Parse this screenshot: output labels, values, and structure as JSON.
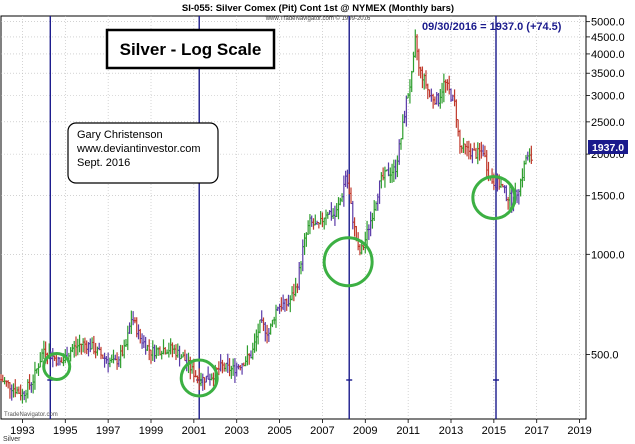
{
  "header": {
    "title": "SI-055:  Silver Comex (Pit) Cont 1st @ NYMEX  (Monthly bars)",
    "copyright": "www.TradeNavigator.com © 1999-2016",
    "readout": "09/30/2016 = 1937.0 (+74.5)",
    "last_price_tag": "1937.0"
  },
  "title_box": {
    "text": "Silver - Log Scale"
  },
  "author_box": {
    "lines": [
      "Gary Christenson",
      "www.deviantinvestor.com",
      "Sept. 2016"
    ]
  },
  "footer": {
    "watermark": "TradeNavigator.com",
    "symbol": "Silver"
  },
  "colors": {
    "up": "#2e9e2e",
    "down": "#c0392b",
    "other": "#5a3aa8",
    "vline": "#1a1a8c",
    "circle": "#3cb043",
    "readout": "#1a1a8c"
  },
  "chart_data": {
    "type": "ohlc",
    "title": "Silver - Log Scale",
    "scale": "log",
    "ylim": [
      320,
      5200
    ],
    "xlim": [
      1992.0,
      2019.3
    ],
    "x_ticks": [
      "1993",
      "1995",
      "1997",
      "1999",
      "2001",
      "2003",
      "2005",
      "2007",
      "2009",
      "2011",
      "2013",
      "2015",
      "2017",
      "2019"
    ],
    "y_ticks": [
      "5000.0",
      "4500.0",
      "4000.0",
      "3500.0",
      "3000.0",
      "2500.0",
      "2000.0",
      "1500.0",
      "1000.0",
      "500.0"
    ],
    "vertical_lines": [
      1994.3,
      2001.25,
      2008.25,
      2015.1
    ],
    "circles": [
      {
        "x": 1994.6,
        "y": 460
      },
      {
        "x": 2001.25,
        "y": 425
      },
      {
        "x": 2008.2,
        "y": 950
      },
      {
        "x": 2015.0,
        "y": 1480
      }
    ],
    "series_path": [
      [
        1992.0,
        420
      ],
      [
        1992.5,
        400
      ],
      [
        1993.0,
        380
      ],
      [
        1993.5,
        420
      ],
      [
        1994.0,
        520
      ],
      [
        1994.3,
        500
      ],
      [
        1994.8,
        470
      ],
      [
        1995.3,
        520
      ],
      [
        1995.8,
        540
      ],
      [
        1996.2,
        530
      ],
      [
        1996.8,
        490
      ],
      [
        1997.3,
        470
      ],
      [
        1997.8,
        520
      ],
      [
        1998.1,
        650
      ],
      [
        1998.5,
        560
      ],
      [
        1999.0,
        510
      ],
      [
        1999.5,
        520
      ],
      [
        2000.0,
        520
      ],
      [
        2000.5,
        490
      ],
      [
        2001.0,
        440
      ],
      [
        2001.3,
        420
      ],
      [
        2001.8,
        430
      ],
      [
        2002.3,
        460
      ],
      [
        2002.8,
        450
      ],
      [
        2003.2,
        470
      ],
      [
        2003.7,
        500
      ],
      [
        2004.1,
        620
      ],
      [
        2004.5,
        580
      ],
      [
        2004.9,
        700
      ],
      [
        2005.4,
        710
      ],
      [
        2005.8,
        800
      ],
      [
        2006.1,
        1050
      ],
      [
        2006.4,
        1250
      ],
      [
        2006.8,
        1200
      ],
      [
        2007.2,
        1350
      ],
      [
        2007.6,
        1300
      ],
      [
        2007.9,
        1500
      ],
      [
        2008.1,
        1750
      ],
      [
        2008.4,
        1300
      ],
      [
        2008.7,
        1000
      ],
      [
        2008.9,
        1050
      ],
      [
        2009.3,
        1300
      ],
      [
        2009.7,
        1650
      ],
      [
        2010.0,
        1750
      ],
      [
        2010.4,
        1800
      ],
      [
        2010.7,
        2300
      ],
      [
        2010.9,
        2850
      ],
      [
        2011.2,
        3500
      ],
      [
        2011.35,
        4500
      ],
      [
        2011.5,
        3600
      ],
      [
        2011.8,
        3300
      ],
      [
        2012.0,
        3000
      ],
      [
        2012.4,
        2900
      ],
      [
        2012.7,
        3300
      ],
      [
        2012.9,
        3100
      ],
      [
        2013.2,
        2800
      ],
      [
        2013.4,
        2100
      ],
      [
        2013.8,
        2050
      ],
      [
        2014.2,
        2000
      ],
      [
        2014.5,
        2050
      ],
      [
        2014.8,
        1700
      ],
      [
        2015.0,
        1650
      ],
      [
        2015.3,
        1620
      ],
      [
        2015.6,
        1500
      ],
      [
        2015.9,
        1450
      ],
      [
        2016.1,
        1550
      ],
      [
        2016.3,
        1700
      ],
      [
        2016.5,
        1950
      ],
      [
        2016.75,
        1937
      ]
    ]
  }
}
